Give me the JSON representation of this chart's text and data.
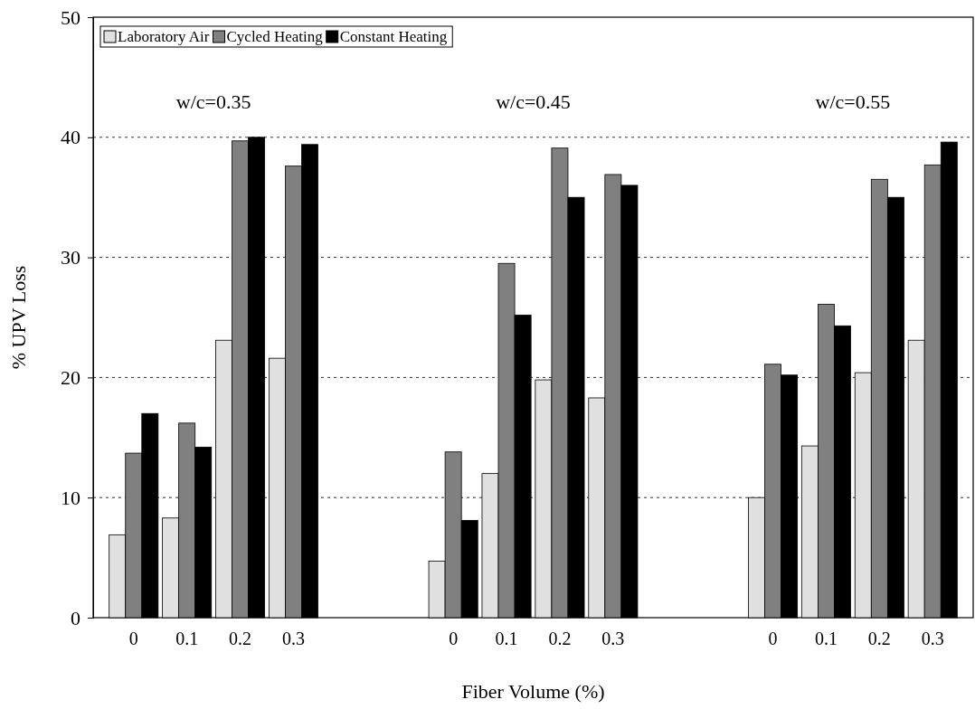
{
  "chart_data": {
    "type": "bar",
    "xlabel": "Fiber Volume (%)",
    "ylabel": "% UPV Loss",
    "categories": [
      "0",
      "0.1",
      "0.2",
      "0.3",
      null,
      null,
      "0",
      "0.1",
      "0.2",
      "0.3",
      null,
      null,
      "0",
      "0.1",
      "0.2",
      "0.3"
    ],
    "series": [
      {
        "name": "Laboratory Air",
        "color": "#e0e0e0",
        "values": [
          6.9,
          8.3,
          23.1,
          21.6,
          null,
          null,
          4.7,
          12.0,
          19.8,
          18.3,
          null,
          null,
          10.0,
          14.3,
          20.4,
          23.1
        ]
      },
      {
        "name": "Cycled Heating",
        "color": "#808080",
        "values": [
          13.7,
          16.2,
          39.7,
          37.6,
          null,
          null,
          13.8,
          29.5,
          39.1,
          36.9,
          null,
          null,
          21.1,
          26.1,
          36.5,
          37.7
        ]
      },
      {
        "name": "Constant Heating",
        "color": "#000000",
        "values": [
          17.0,
          14.2,
          40.0,
          39.4,
          null,
          null,
          8.1,
          25.2,
          35.0,
          36.0,
          null,
          null,
          20.2,
          24.3,
          35.0,
          39.6
        ]
      }
    ],
    "ylim": [
      0,
      50
    ],
    "yticks": [
      0,
      10,
      20,
      30,
      40,
      50
    ],
    "grid": "y",
    "legend": "top left",
    "annotations": [
      "w/c=0.35",
      "w/c=0.45",
      "w/c=0.55"
    ]
  }
}
